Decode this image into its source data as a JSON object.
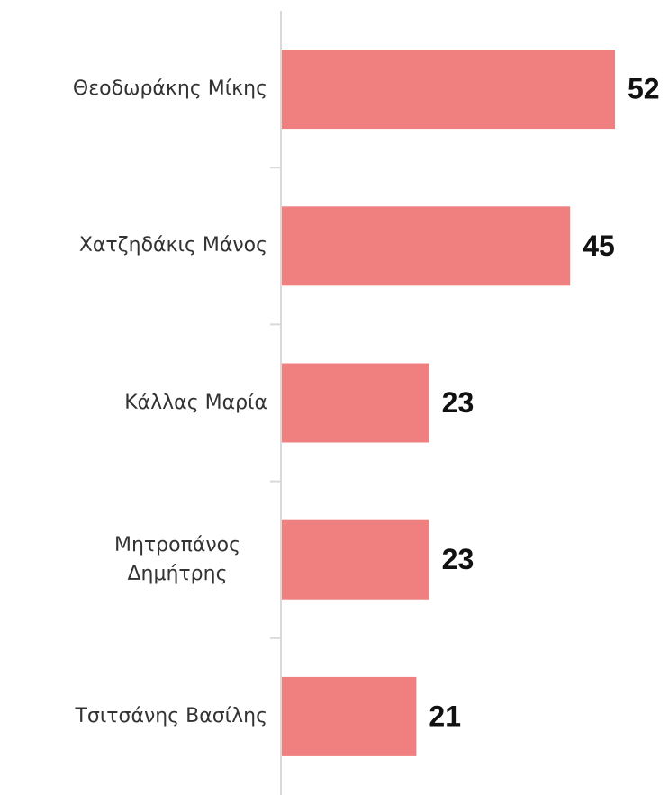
{
  "chart_data": {
    "type": "bar",
    "orientation": "horizontal",
    "categories": [
      "Θεοδωράκης Μίκης",
      "Χατζηδάκις Μάνος",
      "Κάλλας Μαρία",
      "Μητροπάνος Δημήτρης",
      "Τσιτσάνης Βασίλης"
    ],
    "values": [
      52,
      45,
      23,
      23,
      21
    ],
    "color": "#f08080"
  }
}
